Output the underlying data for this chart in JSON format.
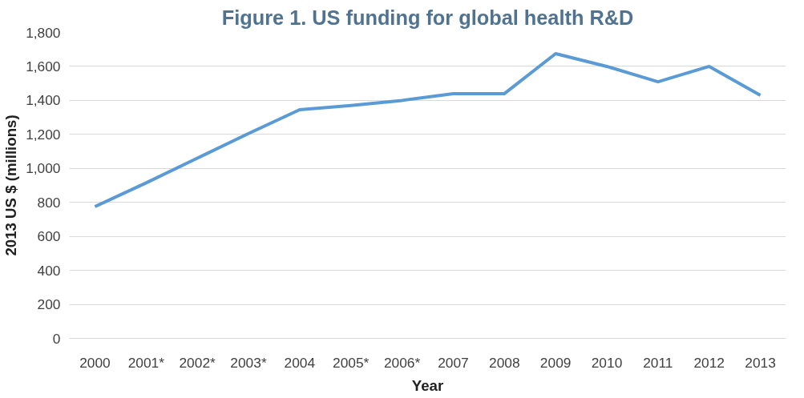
{
  "chart_data": {
    "type": "line",
    "title": "Figure 1. US funding for global health R&D",
    "xlabel": "Year",
    "ylabel": "2013 US $ (millions)",
    "categories": [
      "2000",
      "2001*",
      "2002*",
      "2003*",
      "2004",
      "2005*",
      "2006*",
      "2007",
      "2008",
      "2009",
      "2010",
      "2011",
      "2012",
      "2013"
    ],
    "series": [
      {
        "color": "#5b9bd5",
        "values": [
          775,
          915,
          1060,
          1205,
          1345,
          1370,
          1400,
          1440,
          1440,
          1675,
          1600,
          1510,
          1600,
          1430
        ]
      }
    ],
    "ylim": [
      0,
      1800
    ],
    "yticks": [
      {
        "value": 0,
        "label": "0"
      },
      {
        "value": 200,
        "label": "200"
      },
      {
        "value": 400,
        "label": "400"
      },
      {
        "value": 600,
        "label": "600"
      },
      {
        "value": 800,
        "label": "800"
      },
      {
        "value": 1000,
        "label": "1,000"
      },
      {
        "value": 1200,
        "label": "1,200"
      },
      {
        "value": 1400,
        "label": "1,400"
      },
      {
        "value": 1600,
        "label": "1,600"
      },
      {
        "value": 1800,
        "label": "1,800"
      }
    ],
    "grid": "y",
    "marker": "none",
    "line_style": "solid"
  }
}
